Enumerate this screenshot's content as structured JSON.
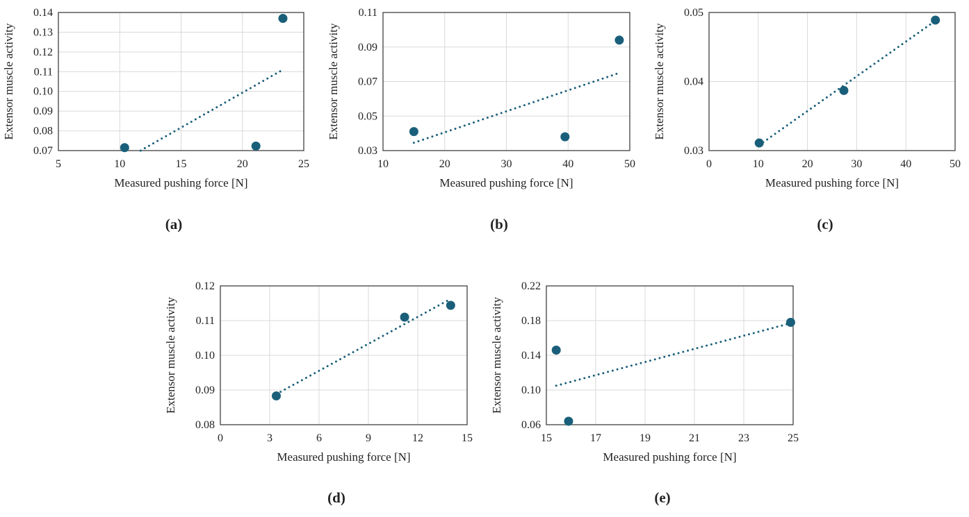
{
  "colors": {
    "marker": "#1a5f7a",
    "trend": "#1a5f7a",
    "grid": "#d9d9d9",
    "axis": "#404040"
  },
  "chart_data": [
    {
      "type": "scatter",
      "panel_label": "(a)",
      "xlabel": "Measured pushing force [N]",
      "ylabel": "Extensor muscle activity",
      "xlim": [
        5,
        25
      ],
      "ylim": [
        0.07,
        0.14
      ],
      "xticks": [
        "5",
        "10",
        "15",
        "20",
        "25"
      ],
      "yticks": [
        "0.07",
        "0.08",
        "0.09",
        "0.10",
        "0.11",
        "0.12",
        "0.13",
        "0.14"
      ],
      "grid": true,
      "points": [
        [
          10.4,
          0.0715
        ],
        [
          21.1,
          0.0723
        ],
        [
          23.3,
          0.137
        ]
      ],
      "trendline": {
        "style": "dotted",
        "linear": true,
        "from": [
          11.7,
          0.07
        ],
        "to": [
          23.3,
          0.111
        ]
      }
    },
    {
      "type": "scatter",
      "panel_label": "(b)",
      "xlabel": "Measured pushing force [N]",
      "ylabel": "Extensor muscle activity",
      "xlim": [
        10,
        50
      ],
      "ylim": [
        0.03,
        0.11
      ],
      "xticks": [
        "10",
        "20",
        "30",
        "40",
        "50"
      ],
      "yticks": [
        "0.03",
        "0.05",
        "0.07",
        "0.09",
        "0.11"
      ],
      "grid": true,
      "points": [
        [
          15.0,
          0.041
        ],
        [
          39.5,
          0.038
        ],
        [
          48.3,
          0.094
        ]
      ],
      "trendline": {
        "style": "dotted",
        "linear": true,
        "from": [
          15.0,
          0.0345
        ],
        "to": [
          48.3,
          0.075
        ]
      }
    },
    {
      "type": "scatter",
      "panel_label": "(c)",
      "xlabel": "Measured pushing force [N]",
      "ylabel": "Extensor muscle activity",
      "xlim": [
        0,
        50
      ],
      "ylim": [
        0.03,
        0.05
      ],
      "xticks": [
        "0",
        "10",
        "20",
        "30",
        "40",
        "50"
      ],
      "yticks": [
        "0.03",
        "0.04",
        "0.05"
      ],
      "grid": true,
      "points": [
        [
          10.2,
          0.0311
        ],
        [
          27.4,
          0.0387
        ],
        [
          46.0,
          0.0489
        ]
      ],
      "trendline": {
        "style": "dotted",
        "linear": true,
        "from": [
          10.2,
          0.0308
        ],
        "to": [
          46.0,
          0.0488
        ]
      }
    },
    {
      "type": "scatter",
      "panel_label": "(d)",
      "xlabel": "Measured pushing force [N]",
      "ylabel": "Extensor muscle activity",
      "xlim": [
        0,
        15
      ],
      "ylim": [
        0.08,
        0.12
      ],
      "xticks": [
        "0",
        "3",
        "6",
        "9",
        "12",
        "15"
      ],
      "yticks": [
        "0.08",
        "0.09",
        "0.10",
        "0.11",
        "0.12"
      ],
      "grid": true,
      "points": [
        [
          3.4,
          0.0883
        ],
        [
          11.2,
          0.111
        ],
        [
          14.0,
          0.1144
        ]
      ],
      "trendline": {
        "style": "dotted",
        "linear": true,
        "from": [
          3.4,
          0.0888
        ],
        "to": [
          13.9,
          0.116
        ]
      }
    },
    {
      "type": "scatter",
      "panel_label": "(e)",
      "xlabel": "Measured pushing force [N]",
      "ylabel": "Extensor muscle activity",
      "xlim": [
        15,
        25
      ],
      "ylim": [
        0.06,
        0.22
      ],
      "xticks": [
        "15",
        "17",
        "19",
        "21",
        "23",
        "25"
      ],
      "yticks": [
        "0.06",
        "0.10",
        "0.14",
        "0.18",
        "0.22"
      ],
      "grid": true,
      "points": [
        [
          15.4,
          0.146
        ],
        [
          15.9,
          0.064
        ],
        [
          24.9,
          0.178
        ]
      ],
      "trendline": {
        "style": "dotted",
        "linear": true,
        "from": [
          15.4,
          0.105
        ],
        "to": [
          24.9,
          0.177
        ]
      }
    }
  ]
}
